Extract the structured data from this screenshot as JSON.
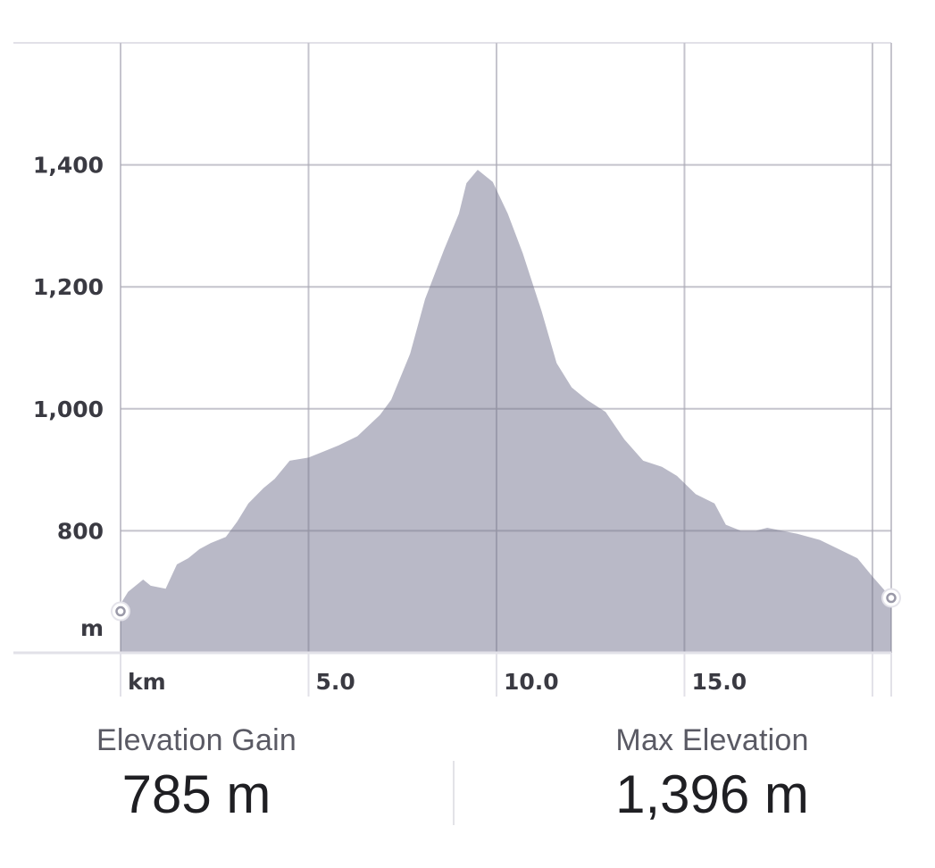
{
  "chart_data": {
    "type": "area",
    "xlabel": "km",
    "ylabel": "m",
    "x_ticks": [
      "5.0",
      "10.0",
      "15.0"
    ],
    "y_ticks": [
      "800",
      "1,000",
      "1,200",
      "1,400"
    ],
    "xlim": [
      0,
      20.5
    ],
    "ylim": [
      600,
      1600
    ],
    "grid": true,
    "fill_color": "#b9b9c7",
    "grid_color": "#e2e1e8",
    "points": [
      [
        0,
        680
      ],
      [
        0.2,
        700
      ],
      [
        0.6,
        720
      ],
      [
        0.8,
        710
      ],
      [
        1.2,
        705
      ],
      [
        1.5,
        745
      ],
      [
        1.8,
        755
      ],
      [
        2.1,
        770
      ],
      [
        2.4,
        780
      ],
      [
        2.8,
        790
      ],
      [
        3.1,
        815
      ],
      [
        3.4,
        845
      ],
      [
        3.8,
        870
      ],
      [
        4.1,
        885
      ],
      [
        4.5,
        915
      ],
      [
        5.0,
        920
      ],
      [
        5.4,
        930
      ],
      [
        5.8,
        940
      ],
      [
        6.3,
        955
      ],
      [
        6.9,
        990
      ],
      [
        7.2,
        1015
      ],
      [
        7.7,
        1090
      ],
      [
        8.1,
        1180
      ],
      [
        8.6,
        1260
      ],
      [
        9.0,
        1320
      ],
      [
        9.2,
        1370
      ],
      [
        9.5,
        1392
      ],
      [
        9.9,
        1372
      ],
      [
        10.3,
        1320
      ],
      [
        10.7,
        1255
      ],
      [
        11.2,
        1160
      ],
      [
        11.6,
        1075
      ],
      [
        12.0,
        1035
      ],
      [
        12.4,
        1015
      ],
      [
        12.9,
        995
      ],
      [
        13.4,
        950
      ],
      [
        13.9,
        915
      ],
      [
        14.4,
        905
      ],
      [
        14.8,
        890
      ],
      [
        15.3,
        860
      ],
      [
        15.8,
        845
      ],
      [
        16.1,
        810
      ],
      [
        16.5,
        800
      ],
      [
        16.9,
        800
      ],
      [
        17.2,
        805
      ],
      [
        17.6,
        800
      ],
      [
        18.0,
        795
      ],
      [
        18.6,
        785
      ],
      [
        19.1,
        770
      ],
      [
        19.6,
        755
      ],
      [
        20.0,
        725
      ],
      [
        20.5,
        690
      ]
    ],
    "start_marker": [
      0,
      668
    ],
    "end_marker": [
      20.5,
      690
    ]
  },
  "stats": {
    "gain_label": "Elevation Gain",
    "gain_value": "785 m",
    "max_label": "Max Elevation",
    "max_value": "1,396 m"
  }
}
